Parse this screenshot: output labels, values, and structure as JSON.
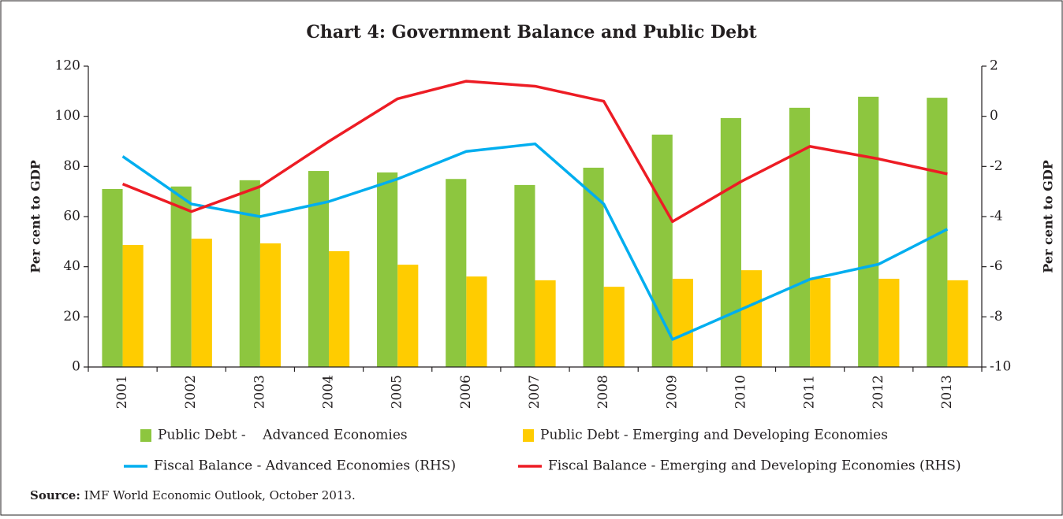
{
  "chart_data": {
    "type": "bar_line",
    "title": "Chart 4: Government Balance and Public Debt",
    "ylabel": "Per cent to GDP",
    "y2label": "Per cent to GDP",
    "categories": [
      "2001",
      "2002",
      "2003",
      "2004",
      "2005",
      "2006",
      "2007",
      "2008",
      "2009",
      "2010",
      "2011",
      "2012",
      "2013"
    ],
    "ylim": [
      0,
      120
    ],
    "yticks": [
      0,
      20,
      40,
      60,
      80,
      100,
      120
    ],
    "y2lim": [
      -10,
      2
    ],
    "y2ticks": [
      -10,
      -8,
      -6,
      -4,
      -2,
      0,
      2
    ],
    "series": [
      {
        "name": "Public Debt -    Advanced Economies",
        "kind": "bar",
        "color": "#8dc63f",
        "values": [
          71,
          72,
          74.5,
          78.2,
          77.6,
          75,
          72.6,
          79.5,
          92.7,
          99.3,
          103.4,
          107.8,
          107.4
        ]
      },
      {
        "name": "Public Debt - Emerging and Developing Economies",
        "kind": "bar",
        "color": "#ffcc00",
        "values": [
          48.7,
          51.2,
          49.3,
          46.2,
          40.8,
          36.1,
          34.6,
          32,
          35.2,
          38.6,
          35.5,
          35.2,
          34.6
        ]
      },
      {
        "name": "Fiscal Balance - Advanced Economies (RHS)",
        "kind": "line",
        "axis": "y2",
        "color": "#00aeef",
        "values": [
          -1.6,
          -3.5,
          -4.0,
          -3.4,
          -2.5,
          -1.4,
          -1.1,
          -3.5,
          -8.9,
          -7.7,
          -6.5,
          -5.9,
          -4.5
        ]
      },
      {
        "name": "Fiscal Balance - Emerging and Developing Economies (RHS)",
        "kind": "line",
        "axis": "y2",
        "color": "#ed1c24",
        "values": [
          -2.7,
          -3.8,
          -2.8,
          -1.0,
          0.7,
          1.4,
          1.2,
          0.6,
          -4.2,
          -2.6,
          -1.2,
          -1.7,
          -2.3
        ]
      }
    ],
    "source_label": "Source:",
    "source_text": "IMF World Economic Outlook, October 2013."
  }
}
